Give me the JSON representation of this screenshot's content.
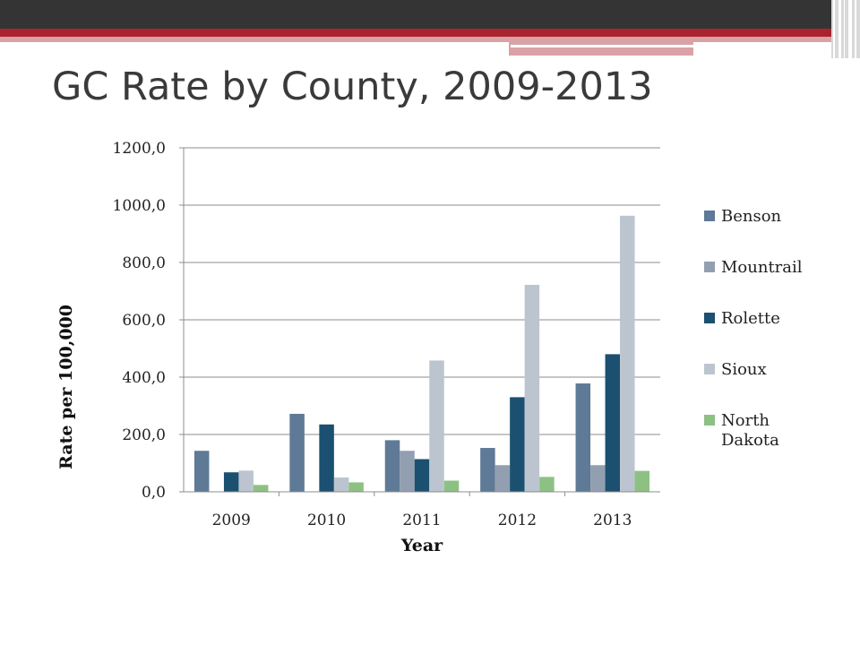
{
  "slide": {
    "title": "GC Rate by County, 2009-2013"
  },
  "colors": {
    "header_dark": "#343434",
    "header_red": "#a8232d",
    "header_pink": "#d9a2a6"
  },
  "chart_data": {
    "type": "bar",
    "title": "",
    "xlabel": "Year",
    "ylabel": "Rate per 100,000",
    "categories": [
      "2009",
      "2010",
      "2011",
      "2012",
      "2013"
    ],
    "ylim": [
      0,
      1200
    ],
    "yticks": [
      "0,0",
      "200,0",
      "400,0",
      "600,0",
      "800,0",
      "1000,0",
      "1200,0"
    ],
    "grid": true,
    "legend_position": "right",
    "series": [
      {
        "name": "Benson",
        "color": "#5e7a96",
        "values": [
          143,
          272,
          180,
          153,
          378
        ]
      },
      {
        "name": "Mountrail",
        "color": "#929fb0",
        "values": [
          0,
          0,
          143,
          93,
          93
        ]
      },
      {
        "name": "Rolette",
        "color": "#1b5070",
        "values": [
          68,
          235,
          114,
          330,
          480
        ]
      },
      {
        "name": "Sioux",
        "color": "#bcc5cf",
        "values": [
          74,
          50,
          458,
          722,
          963
        ]
      },
      {
        "name": "North Dakota",
        "legend_lines": [
          "North",
          "Dakota"
        ],
        "color": "#8dc184",
        "values": [
          24,
          33,
          39,
          52,
          73
        ]
      }
    ]
  }
}
